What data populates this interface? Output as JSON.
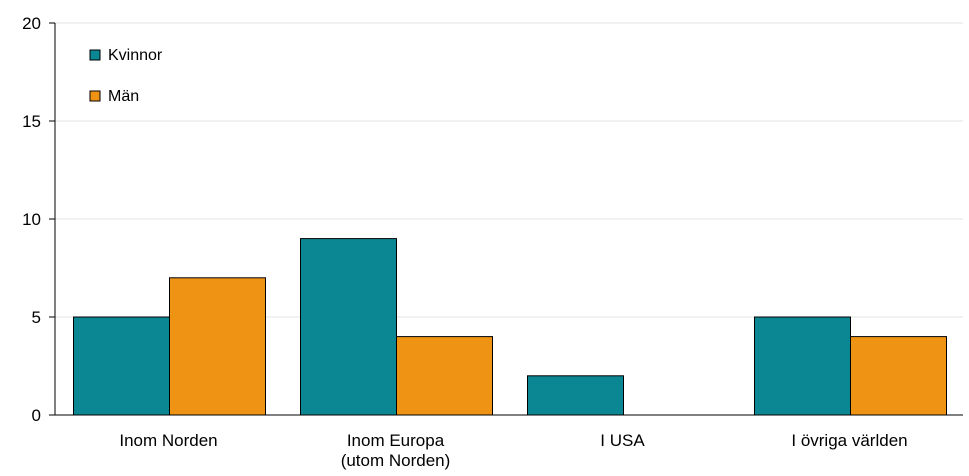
{
  "chart_data": {
    "type": "bar",
    "title": "",
    "xlabel": "",
    "ylabel": "",
    "categories": [
      [
        "Inom Norden"
      ],
      [
        "Inom Europa",
        "(utom Norden)"
      ],
      [
        "I USA"
      ],
      [
        "I övriga världen"
      ]
    ],
    "series": [
      {
        "name": "Kvinnor",
        "values": [
          5,
          9,
          2,
          5
        ],
        "color": "#0b8793"
      },
      {
        "name": "Män",
        "values": [
          7,
          4,
          0,
          4
        ],
        "color": "#ee9314"
      }
    ],
    "ylim": [
      0,
      20
    ],
    "yticks": [
      0,
      5,
      10,
      15,
      20
    ],
    "grid": true,
    "legend_position": "top-left"
  }
}
